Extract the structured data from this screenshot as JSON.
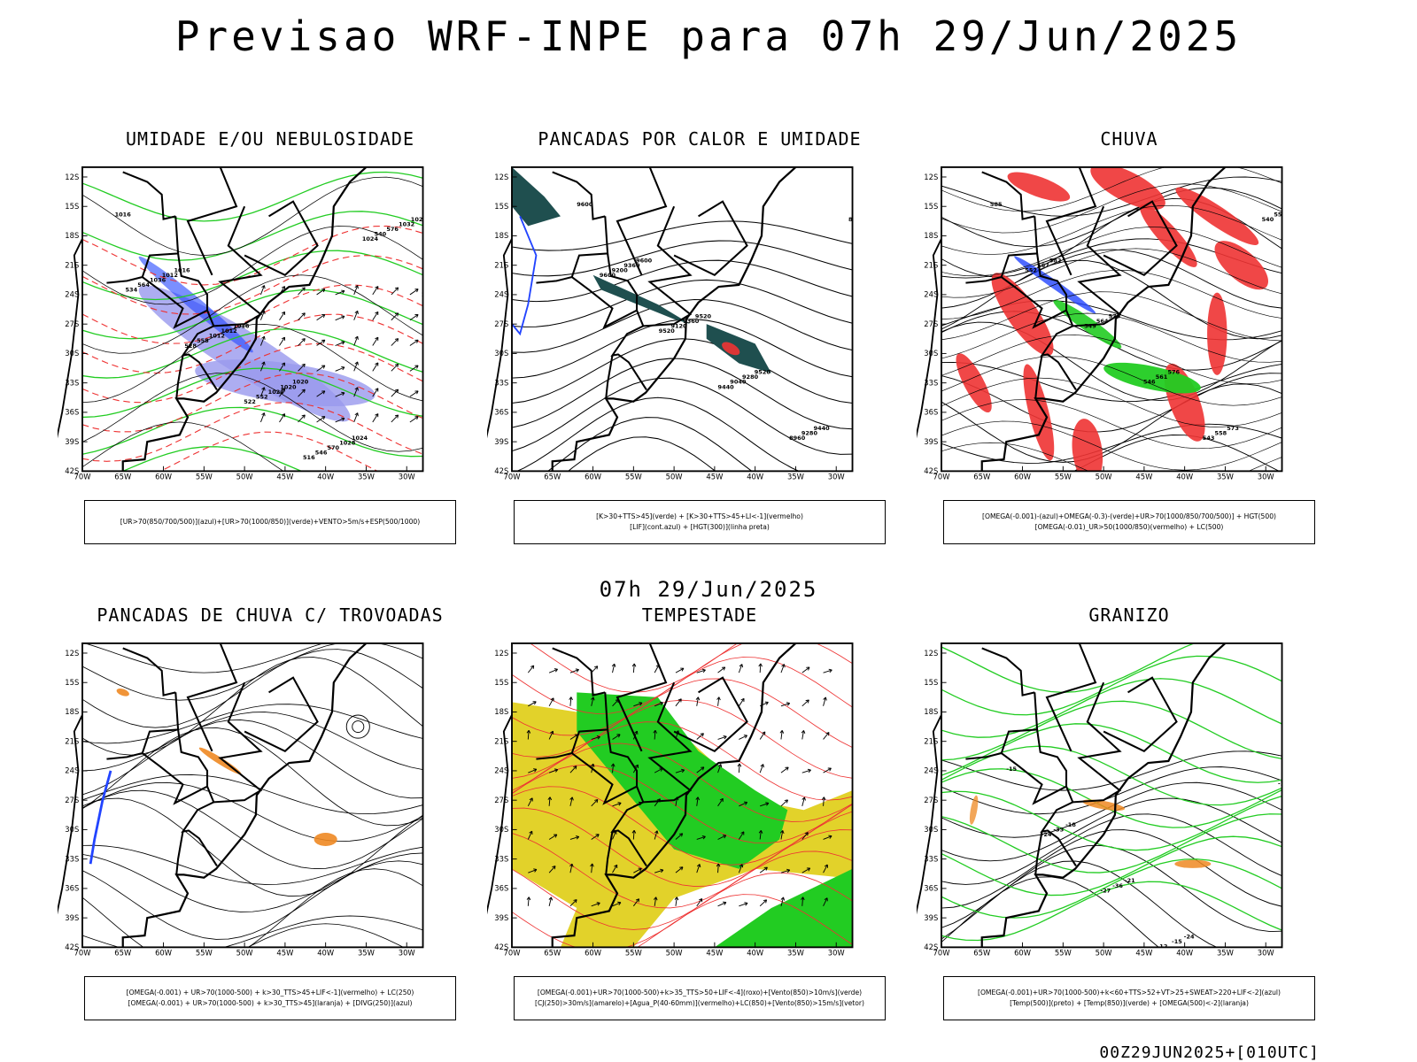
{
  "header": {
    "title": "Previsao WRF-INPE  para 07h 29/Jun/2025",
    "subtitle": "07h 29/Jun/2025",
    "footer": "00Z29JUN2025+[010UTC]"
  },
  "axes": {
    "lat_labels": [
      "12S",
      "15S",
      "18S",
      "21S",
      "24S",
      "27S",
      "30S",
      "33S",
      "36S",
      "39S",
      "42S"
    ],
    "lon_labels": [
      "70W",
      "65W",
      "60W",
      "55W",
      "50W",
      "45W",
      "40W",
      "35W",
      "30W"
    ]
  },
  "colors": {
    "green": "#22cc22",
    "blue": "#2244ff",
    "lightblue": "#9999ee",
    "red": "#ee3333",
    "orange": "#ee8822",
    "yellow": "#e2d22a",
    "darkteal": "#1f4f4f",
    "purple": "#9966cc"
  },
  "panels": [
    {
      "id": "umidade",
      "title": "UMIDADE E/OU NEBULOSIDADE",
      "legend": [
        "[UR>70(850/700/500)](azul)+[UR>70(1000/850)](verde)+VENTO>5m/s+ESP(500/1000)"
      ],
      "contour_labels": [
        "1016",
        "1016",
        "1016",
        "1020",
        "1024",
        "1024",
        "1012",
        "1012",
        "1020",
        "1028",
        "1032",
        "1036",
        "1012",
        "1020",
        "570",
        "576",
        "564",
        "558",
        "552",
        "546",
        "540",
        "534",
        "528",
        "522",
        "516",
        "1024",
        "1020"
      ]
    },
    {
      "id": "pancadas-calor",
      "title": "PANCADAS POR CALOR E UMIDADE",
      "legend": [
        "[K>30+TTS>45](verde) + [K>30+TTS>45+LI<-1](vermelho)",
        "[LIF](cont.azul) + [HGT(300)](linha preta)"
      ],
      "contour_labels": [
        "9600",
        "9600",
        "9520",
        "9520",
        "9440",
        "9440",
        "9360",
        "9360",
        "9280",
        "9280",
        "9200",
        "9200",
        "9120",
        "9040",
        "8960",
        "8960",
        "9600",
        "9520",
        "9440"
      ]
    },
    {
      "id": "chuva",
      "title": "CHUVA",
      "legend": [
        "[OMEGA(-0.001)-(azul)+OMEGA(-0.3)-(verde)+UR>70(1000/850/700/500)] + HGT(500)",
        "[OMEGA(-0.01)_UR>50(1000/850)(vermelho) + LC(500)"
      ],
      "contour_labels": [
        "585",
        "582",
        "579",
        "576",
        "573",
        "570",
        "567",
        "564",
        "561",
        "558",
        "555",
        "552",
        "549",
        "546",
        "543",
        "540"
      ]
    },
    {
      "id": "trovoadas",
      "title": "PANCADAS DE CHUVA C/ TROVOADAS",
      "legend": [
        "[OMEGA(-0.001) + UR>70(1000-500) + k>30_TTS>45+LIF<-1](vermelho) + LC(250)",
        "[OMEGA(-0.001) + UR>70(1000-500) + k>30_TTS>45](laranja) + [DIVG(250)](azul)"
      ],
      "contour_labels": []
    },
    {
      "id": "tempestade",
      "title": "TEMPESTADE",
      "legend": [
        "[OMEGA(-0.001)+UR>70(1000-500)+k>35_TTS>50+LIF<-4](roxo)+[Vento(850)>10m/s](verde)",
        "[CJ(250)>30m/s](amarelo)+[Agua_P(40-60mm)](vermelho)+LC(850)+[Vento(850)>15m/s](vetor)"
      ],
      "contour_labels": []
    },
    {
      "id": "granizo",
      "title": "GRANIZO",
      "legend": [
        "[OMEGA(-0.001)+UR>70(1000-500)+k<60+TTS>52+VT>25+SWEAT>220+LIF<-2](azul)",
        "[Temp(500)](preto) + [Temp(850)](verde) + [OMEGA(500)<-2](laranja)"
      ],
      "contour_labels": [
        "-15",
        "-18",
        "-21",
        "-24",
        "-27",
        "-30",
        "-33",
        "-36",
        "-15",
        "-18",
        "-21",
        "-24",
        "-27",
        "12",
        "15",
        "-12"
      ]
    }
  ]
}
